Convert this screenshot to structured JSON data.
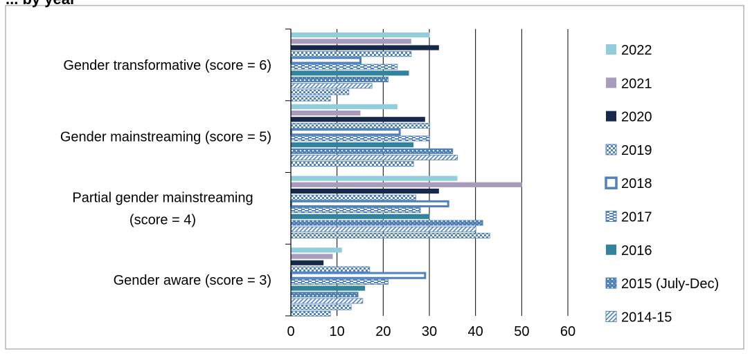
{
  "header": {
    "partial_title": "... by year"
  },
  "chart_data": {
    "type": "bar",
    "orientation": "horizontal",
    "categories": [
      "Gender transformative (score = 6)",
      "Gender mainstreaming (score = 5)",
      "Partial gender mainstreaming (score = 4)",
      "Gender aware (score = 3)"
    ],
    "category_label_lines": [
      [
        "Gender transformative (score = 6)"
      ],
      [
        "Gender mainstreaming (score = 5)"
      ],
      [
        "Partial gender mainstreaming",
        "(score = 4)"
      ],
      [
        "Gender aware (score = 3)"
      ]
    ],
    "series": [
      {
        "name": "2022",
        "values": [
          30,
          23,
          36,
          11
        ],
        "color": "#92CDDC",
        "pattern": "solid"
      },
      {
        "name": "2021",
        "values": [
          26,
          15,
          50,
          9
        ],
        "color": "#A99BBD",
        "pattern": "solid"
      },
      {
        "name": "2020",
        "values": [
          32,
          29,
          32,
          7
        ],
        "color": "#17294A",
        "pattern": "solid"
      },
      {
        "name": "2019",
        "values": [
          26,
          30,
          27,
          17
        ],
        "color": "#4F81BD",
        "pattern": "checker"
      },
      {
        "name": "2018",
        "values": [
          15,
          23.5,
          34,
          29
        ],
        "color": "#4F81BD",
        "pattern": "thick-outline"
      },
      {
        "name": "2017",
        "values": [
          23,
          30,
          28,
          21
        ],
        "color": "#4F81BD",
        "pattern": "dashed"
      },
      {
        "name": "2016",
        "values": [
          25.5,
          26.5,
          30,
          16
        ],
        "color": "#31849B",
        "pattern": "solid"
      },
      {
        "name": "2015 (July-Dec)",
        "values": [
          21,
          35,
          41.5,
          14.5
        ],
        "color": "#4F81BD",
        "pattern": "dots"
      },
      {
        "name": "2014-15",
        "values": [
          17.5,
          36,
          40,
          15.5
        ],
        "color": "#4F81BD",
        "pattern": "diagonal"
      },
      {
        "name": "",
        "values": [
          12.5,
          26.5,
          43,
          13
        ],
        "color": "#4F81BD",
        "pattern": "checker"
      },
      {
        "name": "",
        "values": [
          8.5,
          0,
          0,
          8.5
        ],
        "color": "#4F81BD",
        "pattern": "checker"
      }
    ],
    "xlim": [
      0,
      60
    ],
    "xticks": [
      0,
      10,
      20,
      30,
      40,
      50,
      60
    ],
    "xlabel": "",
    "ylabel": "",
    "grid": "vertical",
    "legend_position": "right"
  }
}
